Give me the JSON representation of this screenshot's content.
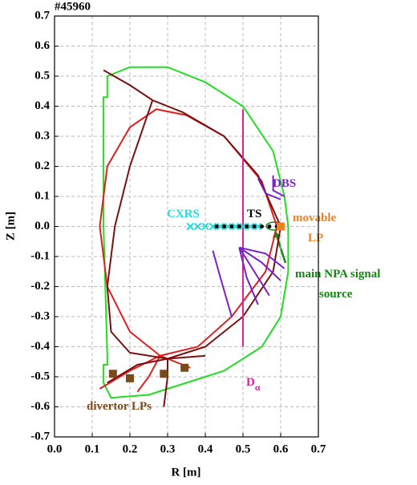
{
  "chart_data": {
    "type": "scatter",
    "title": "#45960",
    "xlabel": "R [m]",
    "ylabel": "Z [m]",
    "xlim": [
      0,
      0.7
    ],
    "ylim": [
      -0.7,
      0.7
    ],
    "xticks": [
      {
        "value": 0,
        "label": "0.0"
      },
      0.1,
      0.2,
      0.3,
      0.4,
      0.5,
      0.6,
      0.7
    ],
    "yticks": [
      -0.7,
      -0.6,
      -0.5,
      -0.4,
      -0.3,
      -0.2,
      -0.1,
      {
        "value": 0,
        "label": "0.0"
      },
      0.1,
      0.2,
      0.3,
      0.4,
      0.5,
      0.6,
      0.7
    ],
    "grid": true,
    "series": [
      {
        "kind": "line",
        "color": "#22dd22",
        "x": [
          0.13,
          0.13,
          0.14,
          0.14,
          0.2,
          0.3,
          0.4,
          0.5,
          0.58,
          0.61,
          0.62,
          0.62,
          0.6,
          0.55,
          0.45,
          0.35,
          0.25,
          0.15,
          0.13,
          0.13,
          0.14,
          0.14,
          0.13
        ],
        "y": [
          0.0,
          0.43,
          0.43,
          0.5,
          0.53,
          0.53,
          0.48,
          0.4,
          0.25,
          0.1,
          0.0,
          -0.15,
          -0.3,
          -0.4,
          -0.48,
          -0.52,
          -0.56,
          -0.57,
          -0.52,
          -0.46,
          -0.46,
          -0.43,
          0.0
        ]
      },
      {
        "kind": "line",
        "color": "#e02020",
        "x": [
          0.28,
          0.2,
          0.14,
          0.12,
          0.14,
          0.2,
          0.27,
          0.35,
          0.45,
          0.55,
          0.59,
          0.56,
          0.47,
          0.38,
          0.28
        ],
        "y": [
          -0.43,
          -0.35,
          -0.2,
          0.0,
          0.2,
          0.33,
          0.39,
          0.37,
          0.3,
          0.15,
          0.0,
          -0.15,
          -0.3,
          -0.4,
          -0.43
        ]
      },
      {
        "kind": "line",
        "color": "#e02020",
        "x": [
          0.12,
          0.2,
          0.28,
          0.36
        ],
        "y": [
          -0.54,
          -0.48,
          -0.43,
          -0.47
        ]
      },
      {
        "kind": "line",
        "color": "#e02020",
        "x": [
          0.28,
          0.25,
          0.22
        ],
        "y": [
          -0.43,
          -0.5,
          -0.55
        ]
      },
      {
        "kind": "line",
        "color": "#7b1010",
        "x": [
          0.13,
          0.2,
          0.26,
          0.34,
          0.45,
          0.54,
          0.6,
          0.58,
          0.5,
          0.4,
          0.3
        ],
        "y": [
          0.52,
          0.47,
          0.42,
          0.38,
          0.3,
          0.17,
          0.0,
          -0.15,
          -0.3,
          -0.4,
          -0.44
        ]
      },
      {
        "kind": "line",
        "color": "#7b1010",
        "x": [
          0.26,
          0.2,
          0.16,
          0.14,
          0.15,
          0.2,
          0.3,
          0.3,
          0.29
        ],
        "y": [
          0.42,
          0.2,
          0.0,
          -0.2,
          -0.35,
          -0.42,
          -0.44,
          -0.5,
          -0.6
        ]
      },
      {
        "kind": "line",
        "color": "#7b1010",
        "x": [
          0.14,
          0.22,
          0.3,
          0.4
        ],
        "y": [
          -0.52,
          -0.46,
          -0.44,
          -0.43
        ]
      },
      {
        "kind": "line",
        "color": "#e0209a",
        "x": [
          0.5,
          0.5
        ],
        "y": [
          0.39,
          -0.4
        ]
      },
      {
        "kind": "line",
        "color": "#7a20c8",
        "x": [
          0.54,
          0.56,
          0.6
        ],
        "y": [
          0.16,
          0.11,
          0.09
        ]
      },
      {
        "kind": "line",
        "color": "#7a20c8",
        "x": [
          0.58,
          0.58,
          0.61
        ],
        "y": [
          0.17,
          0.12,
          0.1
        ]
      },
      {
        "kind": "line",
        "color": "#7a20c8",
        "x": [
          0.49,
          0.51,
          0.54
        ],
        "y": [
          -0.07,
          -0.17,
          -0.26
        ]
      },
      {
        "kind": "line",
        "color": "#7a20c8",
        "x": [
          0.49,
          0.53,
          0.57
        ],
        "y": [
          -0.07,
          -0.15,
          -0.23
        ]
      },
      {
        "kind": "line",
        "color": "#7a20c8",
        "x": [
          0.49,
          0.55,
          0.6
        ],
        "y": [
          -0.07,
          -0.12,
          -0.18
        ]
      },
      {
        "kind": "line",
        "color": "#7a20c8",
        "x": [
          0.49,
          0.56,
          0.61
        ],
        "y": [
          -0.07,
          -0.09,
          -0.14
        ]
      },
      {
        "kind": "line",
        "color": "#7a20c8",
        "x": [
          0.42,
          0.44,
          0.47
        ],
        "y": [
          -0.08,
          -0.17,
          -0.3
        ]
      },
      {
        "kind": "marker",
        "marker": "cross",
        "color": "#22dddd",
        "x": [
          0.36,
          0.38,
          0.4,
          0.42,
          0.44,
          0.46,
          0.48,
          0.5,
          0.52,
          0.54
        ],
        "y": [
          0,
          0,
          0,
          0,
          0,
          0,
          0,
          0,
          0,
          0
        ]
      },
      {
        "kind": "marker",
        "marker": "dot",
        "color": "#000000",
        "x": [
          0.43,
          0.45,
          0.47,
          0.49,
          0.51,
          0.53,
          0.55,
          0.57,
          0.59
        ],
        "y": [
          0,
          0,
          0,
          0,
          0,
          0,
          0,
          0,
          0
        ]
      },
      {
        "kind": "marker",
        "marker": "square",
        "color": "#f08020",
        "x": [
          0.6
        ],
        "y": [
          0
        ]
      },
      {
        "kind": "marker",
        "marker": "square",
        "color": "#7a4a1a",
        "x": [
          0.155,
          0.2,
          0.29,
          0.345
        ],
        "y": [
          -0.49,
          -0.505,
          -0.49,
          -0.47
        ]
      }
    ],
    "annotations": [
      {
        "text": "DBS",
        "color": "#7a20c8"
      },
      {
        "text": "CXRS",
        "color": "#22dddd"
      },
      {
        "text": "TS",
        "color": "#000000"
      },
      {
        "text": "movable",
        "color": "#f08020"
      },
      {
        "text": "LP",
        "color": "#f08020"
      },
      {
        "text": "main NPA signal",
        "color": "#118811"
      },
      {
        "text": "source",
        "color": "#118811"
      },
      {
        "text": "D",
        "sub": "α",
        "color": "#e0209a"
      },
      {
        "text": "divertor LPs",
        "color": "#7a4a1a"
      }
    ]
  }
}
